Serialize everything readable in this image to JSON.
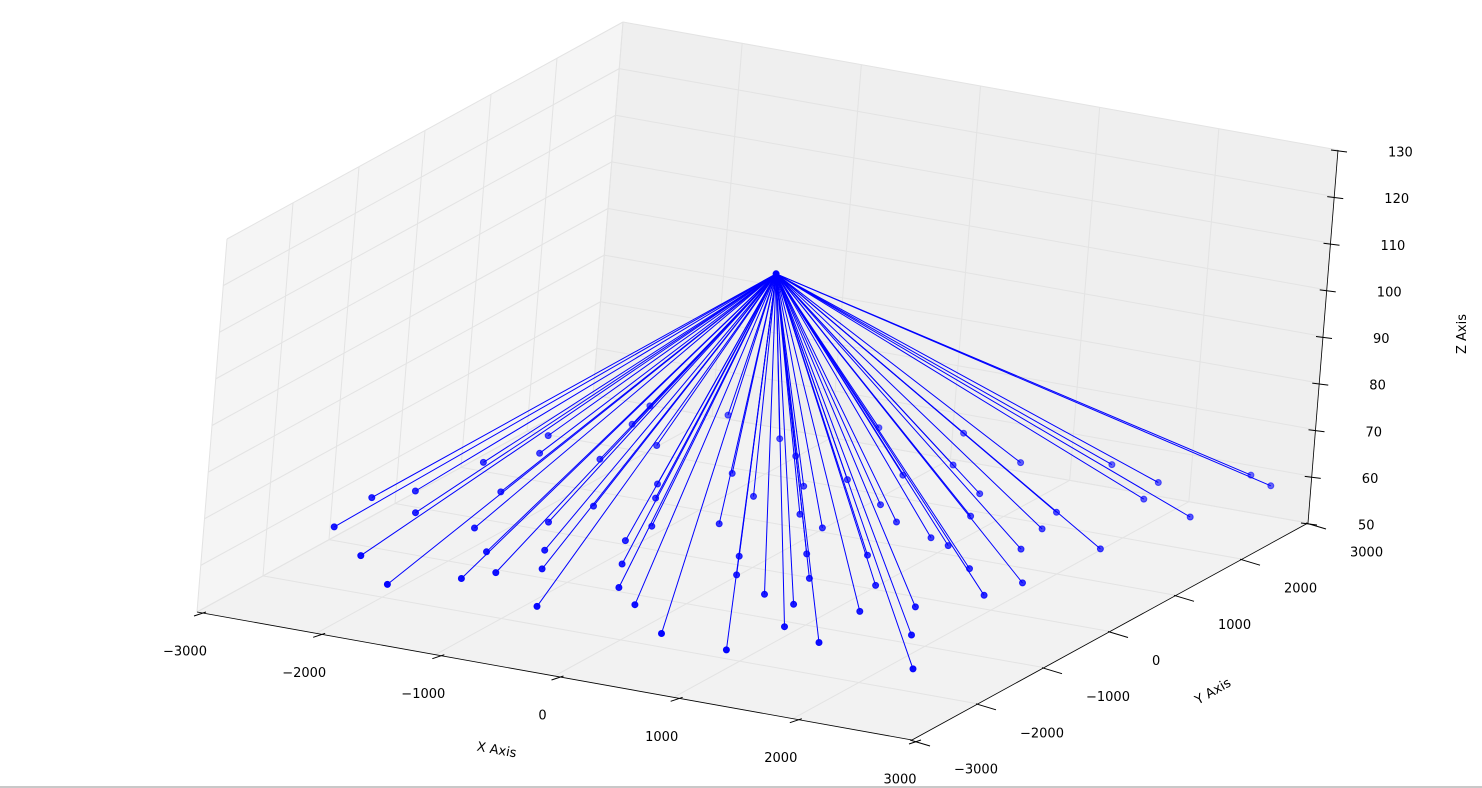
{
  "chart_data": {
    "type": "scatter",
    "subtype": "3d-scatter-with-lines-from-apex",
    "title": "",
    "xlabel": "X Axis",
    "ylabel": "Y Axis",
    "zlabel": "Z Axis",
    "xlim": [
      -3000,
      3000
    ],
    "ylim": [
      -3000,
      3000
    ],
    "zlim": [
      50,
      130
    ],
    "x_ticks": [
      "−3000",
      "−2000",
      "−1000",
      "0",
      "1000",
      "2000",
      "3000"
    ],
    "y_ticks": [
      "−3000",
      "−2000",
      "−1000",
      "0",
      "1000",
      "2000",
      "3000"
    ],
    "z_ticks": [
      "50",
      "60",
      "70",
      "80",
      "90",
      "100",
      "110",
      "120",
      "130"
    ],
    "grid": true,
    "color": "#0000ff",
    "apex": {
      "x": 0,
      "y": 0,
      "z": 113
    },
    "points_z": 60,
    "points_xy": [
      [
        -2250,
        -1100
      ],
      [
        -2500,
        -650
      ],
      [
        -2400,
        200
      ],
      [
        -2700,
        -950
      ],
      [
        -2150,
        600
      ],
      [
        -1900,
        1550
      ],
      [
        -1950,
        -350
      ],
      [
        -1700,
        -1200
      ],
      [
        -1350,
        -1650
      ],
      [
        -1050,
        -2050
      ],
      [
        -800,
        -1800
      ],
      [
        -1200,
        -300
      ],
      [
        -1050,
        400
      ],
      [
        -700,
        900
      ],
      [
        -600,
        -900
      ],
      [
        -350,
        -1400
      ],
      [
        -100,
        -1900
      ],
      [
        200,
        -2200
      ],
      [
        -200,
        -200
      ],
      [
        -300,
        500
      ],
      [
        100,
        1200
      ],
      [
        400,
        1500
      ],
      [
        600,
        800
      ],
      [
        700,
        -500
      ],
      [
        500,
        -1200
      ],
      [
        900,
        -1500
      ],
      [
        1200,
        -1600
      ],
      [
        1400,
        -2100
      ],
      [
        1700,
        -1500
      ],
      [
        2000,
        -1200
      ],
      [
        1100,
        -300
      ],
      [
        1500,
        200
      ],
      [
        1300,
        900
      ],
      [
        1800,
        1300
      ],
      [
        1900,
        -200
      ],
      [
        2300,
        -700
      ],
      [
        2500,
        700
      ],
      [
        2200,
        1900
      ],
      [
        2700,
        1700
      ],
      [
        2850,
        2650
      ],
      [
        -1500,
        1200
      ],
      [
        -1400,
        2100
      ],
      [
        -300,
        2400
      ],
      [
        300,
        2600
      ],
      [
        1000,
        2200
      ],
      [
        1600,
        2500
      ],
      [
        2100,
        2300
      ],
      [
        2600,
        2800
      ],
      [
        -2000,
        2000
      ],
      [
        -800,
        1800
      ],
      [
        -1200,
        -2300
      ],
      [
        -400,
        -2600
      ],
      [
        700,
        -2700
      ],
      [
        1300,
        -2800
      ],
      [
        1800,
        -2300
      ],
      [
        2300,
        -1800
      ],
      [
        2700,
        -2500
      ],
      [
        -2600,
        -1700
      ],
      [
        -2100,
        -2200
      ],
      [
        -1600,
        -2700
      ],
      [
        200,
        300
      ],
      [
        500,
        100
      ],
      [
        -600,
        -500
      ],
      [
        900,
        500
      ],
      [
        -900,
        100
      ],
      [
        1500,
        -900
      ],
      [
        1100,
        1400
      ],
      [
        -1700,
        700
      ],
      [
        300,
        -800
      ],
      [
        -100,
        900
      ],
      [
        1000,
        -1000
      ],
      [
        -1300,
        -800
      ],
      [
        2000,
        400
      ],
      [
        600,
        1900
      ],
      [
        -500,
        1500
      ],
      [
        1900,
        900
      ],
      [
        -2300,
        1000
      ],
      [
        2400,
        -300
      ],
      [
        -1000,
        -1400
      ],
      [
        1300,
        300
      ]
    ]
  }
}
